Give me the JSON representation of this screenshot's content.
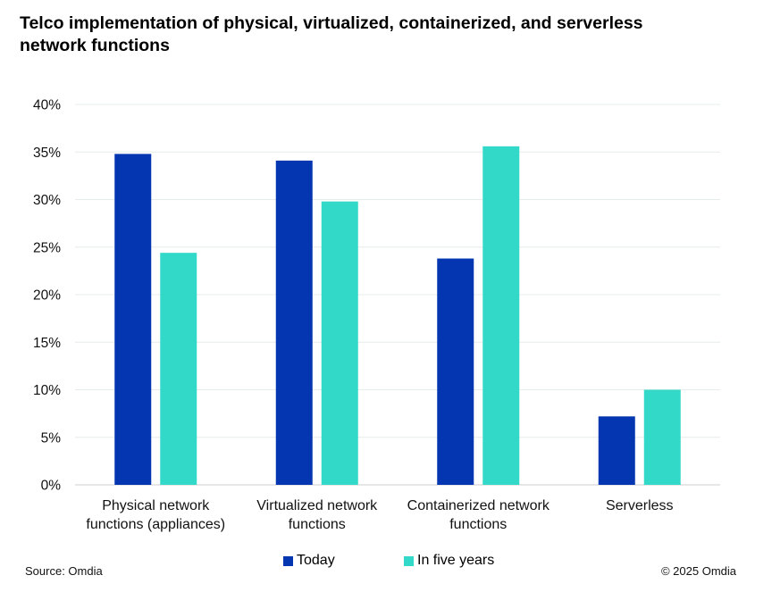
{
  "chart_data": {
    "type": "bar",
    "title_lines": [
      "Telco implementation of physical, virtualized, containerized, and serverless",
      "network functions"
    ],
    "categories": [
      [
        "Physical network",
        "functions (appliances)"
      ],
      [
        "Virtualized network",
        "functions"
      ],
      [
        "Containerized network",
        "functions"
      ],
      [
        "Serverless"
      ]
    ],
    "series": [
      {
        "name": "Today",
        "color": "#0336B0",
        "values": [
          34.8,
          34.1,
          23.8,
          7.2
        ]
      },
      {
        "name": "In five years",
        "color": "#33D9C8",
        "values": [
          24.4,
          29.8,
          35.6,
          10.0
        ]
      }
    ],
    "ylim": [
      0,
      40
    ],
    "yticks": [
      0,
      5,
      10,
      15,
      20,
      25,
      30,
      35,
      40
    ],
    "ytick_labels": [
      "0%",
      "5%",
      "10%",
      "15%",
      "20%",
      "25%",
      "30%",
      "35%",
      "40%"
    ],
    "xlabel": "",
    "ylabel": "",
    "grid": true,
    "legend": "bottom-center"
  },
  "footer": {
    "source": "Source: Omdia",
    "copyright": "© 2025 Omdia"
  }
}
